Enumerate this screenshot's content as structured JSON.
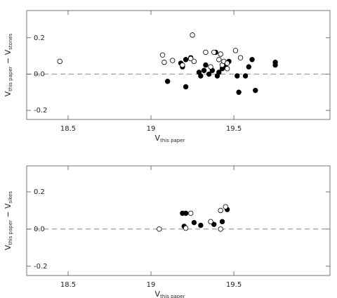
{
  "chart_data": [
    {
      "type": "scatter",
      "xlabel": "V",
      "xlabel_sub": "this paper",
      "ylabel_parts": [
        {
          "text": "V"
        },
        {
          "text": "this paper",
          "sub": true
        },
        {
          "text": " − V"
        },
        {
          "text": "stones",
          "sub": true
        }
      ],
      "xlim": [
        18.25,
        20.08
      ],
      "xticks": [
        18.5,
        19,
        19.5
      ],
      "ylim": [
        -0.25,
        0.35
      ],
      "yticks": [
        -0.2,
        {
          "value": 0,
          "label": "0.0"
        },
        0.2
      ],
      "hline": 0,
      "series": [
        {
          "color": "#000000",
          "filled": true,
          "x": [
            19.1,
            19.18,
            19.19,
            19.21,
            19.21,
            19.24,
            19.29,
            19.3,
            19.32,
            19.33,
            19.35,
            19.37,
            19.39,
            19.4,
            19.41,
            19.43,
            19.44,
            19.45,
            19.47,
            19.52,
            19.53,
            19.57,
            19.59,
            19.61,
            19.63,
            19.75,
            19.75
          ],
          "values": [
            -0.04,
            0.06,
            0.04,
            0.08,
            -0.07,
            0.09,
            0.01,
            -0.01,
            0.02,
            0.05,
            0.0,
            0.02,
            0.12,
            -0.01,
            0.01,
            0.03,
            0.05,
            0.04,
            0.07,
            -0.01,
            -0.1,
            -0.01,
            0.04,
            0.08,
            -0.09,
            0.065,
            0.05
          ]
        },
        {
          "color": "#000000",
          "filled": false,
          "x": [
            18.45,
            19.07,
            19.08,
            19.13,
            19.19,
            19.24,
            19.25,
            19.26,
            19.33,
            19.36,
            19.38,
            19.41,
            19.42,
            19.43,
            19.44,
            19.46,
            19.46,
            19.51,
            19.54
          ],
          "values": [
            0.07,
            0.105,
            0.065,
            0.075,
            0.05,
            0.085,
            0.215,
            0.07,
            0.12,
            0.04,
            0.12,
            0.08,
            0.11,
            0.05,
            0.07,
            0.03,
            0.06,
            0.13,
            0.09
          ]
        }
      ]
    },
    {
      "type": "scatter",
      "xlabel": "V",
      "xlabel_sub": "this paper",
      "ylabel_parts": [
        {
          "text": "V"
        },
        {
          "text": "this paper",
          "sub": true
        },
        {
          "text": " − V"
        },
        {
          "text": "sikes",
          "sub": true
        }
      ],
      "xlim": [
        18.25,
        20.08
      ],
      "xticks": [
        18.5,
        19,
        19.5
      ],
      "ylim": [
        -0.25,
        0.34
      ],
      "yticks": [
        -0.2,
        {
          "value": 0,
          "label": "0.0"
        },
        0.2
      ],
      "hline": 0,
      "series": [
        {
          "color": "#000000",
          "filled": true,
          "x": [
            19.19,
            19.21,
            19.2,
            19.26,
            19.3,
            19.38,
            19.43,
            19.46
          ],
          "values": [
            0.085,
            0.085,
            0.015,
            0.035,
            0.02,
            0.025,
            0.04,
            0.105
          ]
        },
        {
          "color": "#000000",
          "filled": false,
          "x": [
            19.05,
            19.21,
            19.24,
            19.36,
            19.42,
            19.42,
            19.45
          ],
          "values": [
            0.0,
            0.005,
            0.085,
            0.04,
            0.1,
            0.0,
            0.12
          ]
        }
      ]
    }
  ]
}
